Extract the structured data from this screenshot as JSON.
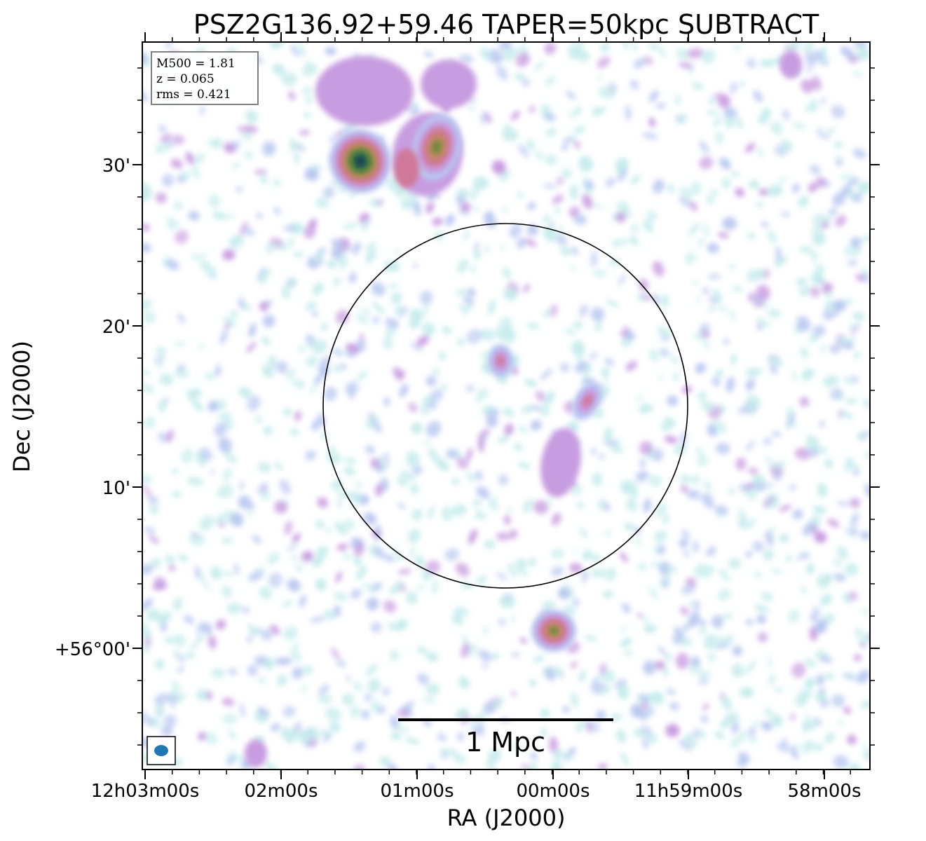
{
  "chart_data": {
    "type": "heatmap",
    "title": "PSZ2G136.92+59.46 TAPER=50kpc SUBTRACT",
    "xlabel": "RA (J2000)",
    "ylabel": "Dec (J2000)",
    "x_ticks": [
      "12h03m00s",
      "02m00s",
      "01m00s",
      "00m00s",
      "11h59m00s",
      "58m00s"
    ],
    "y_ticks": [
      "30'",
      "20'",
      "10'",
      "+56°00'"
    ],
    "info_box": [
      "M500 = 1.81",
      "z = 0.065",
      "rms = 0.421"
    ],
    "scale_bar_label": "1 Mpc",
    "colormap": [
      "#c6ecec",
      "#b8c8f0",
      "#c89ce0",
      "#d07898",
      "#c08860",
      "#6a8a3a",
      "#2d6a4a",
      "#123a58"
    ],
    "sources": [
      {
        "name": "north-west bright source",
        "peak": 1.0
      },
      {
        "name": "north source",
        "peak": 0.75
      },
      {
        "name": "south compact source",
        "peak": 0.75
      },
      {
        "name": "central faint emission",
        "peak": 0.4
      }
    ]
  }
}
